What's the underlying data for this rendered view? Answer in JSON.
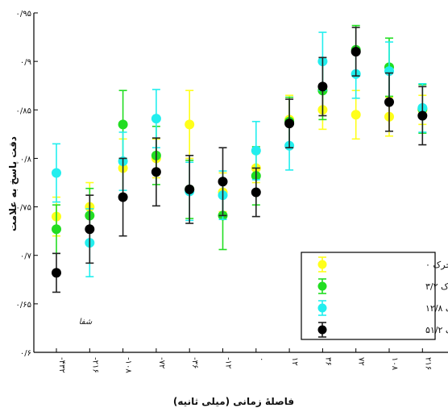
{
  "chart_data": {
    "type": "scatter",
    "xlabel": "فاصلهٔ زمانی (میلی ثانیه)",
    "ylabel": "دقت پاسخ به علامت",
    "ylim": [
      0.6,
      0.95
    ],
    "y_ticks": [
      "۰/۶",
      "۰/۶۵",
      "۰/۷",
      "۰/۷۵",
      "۰/۸",
      "۰/۸۵",
      "۰/۹",
      "۰/۹۵"
    ],
    "y_tick_values": [
      0.6,
      0.65,
      0.7,
      0.75,
      0.8,
      0.85,
      0.9,
      0.95
    ],
    "categories": [
      "-۴۳۲",
      "-۲۱۶",
      "-۱۰۸",
      "-۷۲",
      "-۳۶",
      "-۱۲",
      "۰",
      "۱۲",
      "۳۶",
      "۷۲",
      "۱۰۸",
      "۲۱۶",
      "۴۳۲"
    ],
    "series": [
      {
        "name": "قدرت محرک ۰",
        "color": "#ffff1a",
        "values": [
          0.74,
          0.75,
          0.79,
          0.8,
          0.835,
          0.765,
          0.79,
          0.84,
          0.85,
          0.845,
          0.843,
          0.85,
          0.855
        ],
        "errors": [
          0.02,
          0.025,
          0.03,
          0.02,
          0.035,
          0.02,
          0.015,
          0.025,
          0.02,
          0.025,
          0.02,
          0.015,
          0.02
        ]
      },
      {
        "name": "قدرت محرک ۳/۲",
        "color": "#22dd22",
        "values": [
          0.727,
          0.741,
          0.835,
          0.803,
          0.768,
          0.741,
          0.782,
          0.838,
          0.87,
          0.912,
          0.894,
          0.851,
          0.782
        ],
        "errors": [
          0.025,
          0.028,
          0.035,
          0.03,
          0.03,
          0.035,
          0.03,
          0.025,
          0.03,
          0.025,
          0.03,
          0.025,
          0.03
        ]
      },
      {
        "name": "قدرت محرک ۱۲/۸",
        "color": "#22eeee",
        "values": [
          0.785,
          0.713,
          0.797,
          0.841,
          0.766,
          0.762,
          0.808,
          0.813,
          0.9,
          0.887,
          0.89,
          0.852,
          0.841
        ],
        "errors": [
          0.03,
          0.035,
          0.03,
          0.03,
          0.03,
          0.025,
          0.03,
          0.025,
          0.03,
          0.025,
          0.03,
          0.025,
          0.03
        ]
      },
      {
        "name": "قدرت محرک ۵۱/۲",
        "color": "#000000",
        "values": [
          0.682,
          0.727,
          0.76,
          0.786,
          0.768,
          0.776,
          0.765,
          0.836,
          0.874,
          0.91,
          0.858,
          0.844,
          0.85
        ],
        "errors": [
          0.02,
          0.035,
          0.04,
          0.035,
          0.035,
          0.035,
          0.025,
          0.025,
          0.03,
          0.025,
          0.03,
          0.03,
          0.03
        ]
      }
    ],
    "grid": false,
    "legend_position": "bottom-right",
    "watermark": "شفا"
  }
}
